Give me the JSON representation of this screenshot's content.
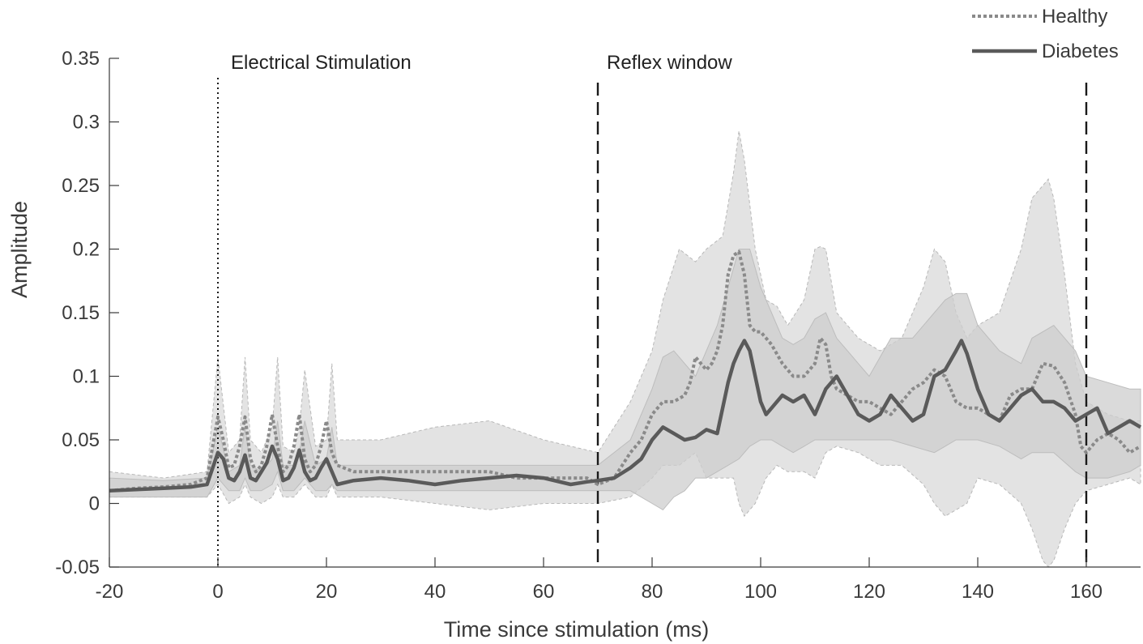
{
  "chart_data": {
    "type": "line",
    "xlabel": "Time since stimulation (ms)",
    "ylabel": "Amplitude",
    "xlim": [
      -20,
      170
    ],
    "ylim": [
      -0.05,
      0.35
    ],
    "x_ticks": [
      "-20",
      "0",
      "20",
      "40",
      "60",
      "80",
      "100",
      "120",
      "140",
      "160"
    ],
    "y_ticks": [
      "-0.05",
      "0",
      "0.05",
      "0.1",
      "0.15",
      "0.2",
      "0.25",
      "0.3",
      "0.35"
    ],
    "grid": false,
    "legend_position": "top-right",
    "annotations": [
      {
        "label": "Electrical Stimulation",
        "x": 0,
        "line_style": "dotted"
      },
      {
        "label": "Reflex window",
        "x": 70,
        "line_style": "dashed"
      },
      {
        "label": "",
        "x": 160,
        "line_style": "dashed"
      }
    ],
    "series": [
      {
        "name": "Healthy",
        "color": "#8a8a8a",
        "style": "dotted",
        "x": [
          -20,
          -15,
          -10,
          -5,
          -2,
          0,
          1,
          2,
          3,
          4,
          5,
          6,
          7,
          8,
          9,
          10,
          11,
          12,
          13,
          14,
          15,
          16,
          17,
          18,
          19,
          20,
          21,
          22,
          25,
          30,
          35,
          40,
          45,
          50,
          55,
          60,
          65,
          68,
          70,
          73,
          76,
          78,
          80,
          82,
          84,
          86,
          87,
          88,
          89,
          90,
          91,
          92,
          93,
          94,
          95,
          96,
          97,
          98,
          99,
          100,
          101,
          102,
          104,
          106,
          108,
          110,
          111,
          112,
          113,
          114,
          116,
          118,
          120,
          122,
          124,
          126,
          128,
          130,
          132,
          134,
          136,
          138,
          140,
          142,
          144,
          146,
          148,
          150,
          152,
          154,
          156,
          158,
          159,
          160,
          162,
          164,
          166,
          168,
          170
        ],
        "y": [
          0.01,
          0.012,
          0.013,
          0.015,
          0.02,
          0.068,
          0.05,
          0.028,
          0.03,
          0.045,
          0.068,
          0.035,
          0.025,
          0.03,
          0.045,
          0.07,
          0.045,
          0.025,
          0.03,
          0.045,
          0.07,
          0.035,
          0.025,
          0.03,
          0.045,
          0.065,
          0.04,
          0.03,
          0.025,
          0.025,
          0.025,
          0.025,
          0.025,
          0.025,
          0.02,
          0.02,
          0.02,
          0.02,
          0.015,
          0.02,
          0.04,
          0.05,
          0.07,
          0.08,
          0.08,
          0.085,
          0.095,
          0.115,
          0.11,
          0.105,
          0.11,
          0.12,
          0.14,
          0.18,
          0.195,
          0.198,
          0.18,
          0.14,
          0.135,
          0.135,
          0.13,
          0.125,
          0.11,
          0.1,
          0.1,
          0.11,
          0.13,
          0.125,
          0.1,
          0.09,
          0.085,
          0.08,
          0.08,
          0.075,
          0.07,
          0.08,
          0.09,
          0.095,
          0.105,
          0.1,
          0.08,
          0.075,
          0.075,
          0.07,
          0.065,
          0.085,
          0.09,
          0.09,
          0.11,
          0.108,
          0.095,
          0.07,
          0.045,
          0.04,
          0.05,
          0.055,
          0.05,
          0.04,
          0.045
        ]
      },
      {
        "name": "Diabetes",
        "color": "#5a5a5a",
        "style": "solid",
        "x": [
          -20,
          -15,
          -10,
          -5,
          -2,
          0,
          1,
          2,
          3,
          4,
          5,
          6,
          7,
          8,
          9,
          10,
          11,
          12,
          13,
          14,
          15,
          16,
          17,
          18,
          19,
          20,
          21,
          22,
          25,
          30,
          35,
          40,
          45,
          50,
          55,
          60,
          65,
          68,
          70,
          73,
          76,
          78,
          80,
          82,
          84,
          86,
          88,
          90,
          92,
          94,
          95,
          96,
          97,
          98,
          99,
          100,
          101,
          102,
          104,
          106,
          108,
          110,
          112,
          114,
          116,
          118,
          120,
          122,
          124,
          126,
          128,
          130,
          132,
          134,
          136,
          137,
          138,
          140,
          142,
          144,
          146,
          148,
          150,
          152,
          154,
          156,
          158,
          160,
          162,
          164,
          166,
          168,
          170
        ],
        "y": [
          0.01,
          0.011,
          0.012,
          0.013,
          0.015,
          0.04,
          0.035,
          0.02,
          0.018,
          0.025,
          0.038,
          0.02,
          0.018,
          0.025,
          0.032,
          0.045,
          0.035,
          0.018,
          0.02,
          0.028,
          0.042,
          0.025,
          0.018,
          0.02,
          0.028,
          0.035,
          0.025,
          0.015,
          0.018,
          0.02,
          0.018,
          0.015,
          0.018,
          0.02,
          0.022,
          0.02,
          0.015,
          0.017,
          0.018,
          0.02,
          0.028,
          0.035,
          0.05,
          0.06,
          0.055,
          0.05,
          0.052,
          0.058,
          0.055,
          0.095,
          0.11,
          0.12,
          0.128,
          0.12,
          0.1,
          0.08,
          0.07,
          0.075,
          0.085,
          0.08,
          0.085,
          0.07,
          0.09,
          0.1,
          0.085,
          0.07,
          0.065,
          0.07,
          0.085,
          0.075,
          0.065,
          0.07,
          0.1,
          0.105,
          0.12,
          0.128,
          0.118,
          0.09,
          0.07,
          0.065,
          0.075,
          0.085,
          0.09,
          0.08,
          0.08,
          0.075,
          0.065,
          0.07,
          0.075,
          0.055,
          0.06,
          0.065,
          0.06
        ]
      }
    ],
    "bands": [
      {
        "series": "Healthy",
        "fill": "#e2e2e2",
        "edge": "dashed",
        "x": [
          -20,
          -10,
          -2,
          0,
          2,
          4,
          5,
          6,
          8,
          10,
          11,
          12,
          14,
          15,
          16,
          18,
          20,
          21,
          22,
          30,
          40,
          50,
          60,
          70,
          76,
          80,
          82,
          85,
          88,
          90,
          93,
          95,
          96,
          97,
          99,
          101,
          103,
          105,
          108,
          110,
          111,
          112,
          114,
          118,
          122,
          126,
          130,
          132,
          134,
          136,
          138,
          140,
          144,
          148,
          150,
          152,
          153,
          154,
          156,
          158,
          160,
          164,
          168,
          170
        ],
        "upper": [
          0.025,
          0.02,
          0.025,
          0.115,
          0.04,
          0.05,
          0.115,
          0.05,
          0.04,
          0.06,
          0.115,
          0.045,
          0.04,
          0.06,
          0.105,
          0.045,
          0.05,
          0.11,
          0.05,
          0.05,
          0.06,
          0.065,
          0.05,
          0.04,
          0.08,
          0.12,
          0.16,
          0.2,
          0.19,
          0.2,
          0.21,
          0.26,
          0.293,
          0.27,
          0.2,
          0.16,
          0.155,
          0.14,
          0.16,
          0.2,
          0.202,
          0.2,
          0.15,
          0.13,
          0.12,
          0.13,
          0.17,
          0.2,
          0.19,
          0.15,
          0.13,
          0.14,
          0.15,
          0.2,
          0.24,
          0.25,
          0.255,
          0.24,
          0.18,
          0.11,
          0.08,
          0.07,
          0.065,
          0.065
        ],
        "lower": [
          0.005,
          0.005,
          0.005,
          0.015,
          0.0,
          0.005,
          0.015,
          0.005,
          0.0,
          0.005,
          0.015,
          0.005,
          0.005,
          0.01,
          0.015,
          0.005,
          0.005,
          0.015,
          0.005,
          0.005,
          0.0,
          -0.005,
          0.0,
          0.0,
          0.005,
          0.02,
          0.03,
          0.03,
          0.04,
          0.02,
          0.02,
          0.02,
          0.0,
          -0.01,
          0.0,
          0.02,
          0.03,
          0.025,
          0.025,
          0.02,
          0.03,
          0.04,
          0.045,
          0.04,
          0.03,
          0.03,
          0.015,
          0.0,
          -0.01,
          -0.005,
          0.0,
          0.02,
          0.015,
          0.0,
          -0.02,
          -0.045,
          -0.05,
          -0.045,
          -0.02,
          0.0,
          0.01,
          0.015,
          0.02,
          0.015
        ]
      },
      {
        "series": "Diabetes",
        "fill": "#cdcdcd",
        "edge": "solid",
        "x": [
          -20,
          -10,
          -2,
          0,
          2,
          4,
          5,
          6,
          8,
          10,
          11,
          12,
          14,
          15,
          16,
          18,
          20,
          21,
          22,
          30,
          40,
          50,
          60,
          70,
          76,
          80,
          82,
          84,
          86,
          88,
          90,
          92,
          94,
          96,
          98,
          100,
          102,
          104,
          106,
          108,
          110,
          112,
          114,
          116,
          118,
          120,
          124,
          128,
          132,
          134,
          136,
          138,
          140,
          144,
          148,
          150,
          154,
          158,
          160,
          164,
          168,
          170
        ],
        "upper": [
          0.02,
          0.018,
          0.02,
          0.06,
          0.025,
          0.03,
          0.06,
          0.03,
          0.025,
          0.035,
          0.065,
          0.03,
          0.03,
          0.04,
          0.065,
          0.03,
          0.035,
          0.06,
          0.03,
          0.03,
          0.03,
          0.03,
          0.03,
          0.03,
          0.05,
          0.09,
          0.115,
          0.12,
          0.11,
          0.1,
          0.12,
          0.14,
          0.17,
          0.2,
          0.2,
          0.17,
          0.15,
          0.13,
          0.125,
          0.13,
          0.145,
          0.15,
          0.13,
          0.12,
          0.11,
          0.1,
          0.13,
          0.13,
          0.15,
          0.16,
          0.165,
          0.165,
          0.14,
          0.12,
          0.11,
          0.13,
          0.14,
          0.12,
          0.1,
          0.095,
          0.09,
          0.09
        ],
        "lower": [
          0.005,
          0.005,
          0.005,
          0.02,
          0.01,
          0.01,
          0.02,
          0.01,
          0.01,
          0.015,
          0.025,
          0.01,
          0.01,
          0.015,
          0.02,
          0.01,
          0.01,
          0.015,
          0.01,
          0.01,
          0.01,
          0.01,
          0.01,
          0.01,
          0.01,
          0.0,
          -0.005,
          0.005,
          0.01,
          0.02,
          0.02,
          0.025,
          0.03,
          0.035,
          0.045,
          0.05,
          0.05,
          0.045,
          0.04,
          0.045,
          0.05,
          0.05,
          0.05,
          0.05,
          0.05,
          0.05,
          0.05,
          0.045,
          0.04,
          0.045,
          0.05,
          0.05,
          0.05,
          0.045,
          0.035,
          0.04,
          0.04,
          0.025,
          0.02,
          0.02,
          0.025,
          0.03
        ]
      }
    ]
  }
}
